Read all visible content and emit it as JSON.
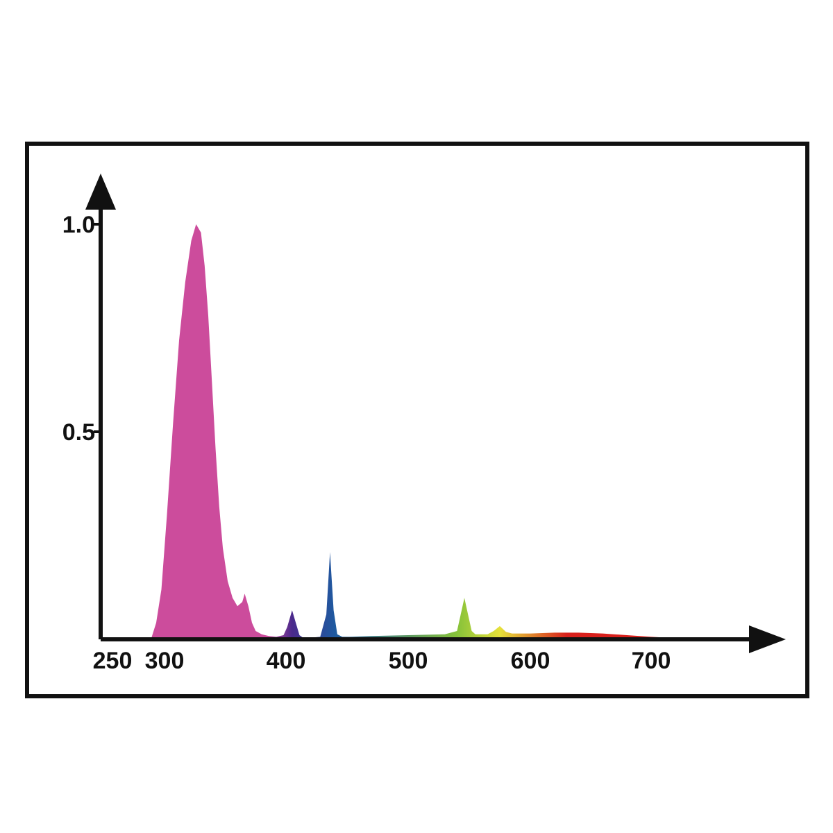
{
  "chart_data": {
    "type": "area",
    "title": "",
    "xlabel": "",
    "ylabel": "",
    "x_ticks": [
      "250",
      "300",
      "400",
      "500",
      "600",
      "700"
    ],
    "y_ticks": [
      "1.0",
      "0.5"
    ],
    "xlim": [
      250,
      790
    ],
    "ylim": [
      0,
      1.1
    ],
    "grid": false,
    "legend": "none",
    "series": [
      {
        "x": [
          287,
          292,
          297,
          302,
          307,
          312,
          317,
          322,
          326,
          330,
          333,
          336,
          339,
          342,
          345,
          348,
          352,
          356,
          360,
          364,
          366,
          369,
          372,
          375,
          380,
          386,
          392,
          398,
          401,
          405,
          408,
          411,
          414,
          420,
          428,
          433,
          436,
          439,
          442,
          446,
          452,
          470,
          500,
          530,
          540,
          543,
          546,
          549,
          552,
          555,
          565,
          570,
          575,
          580,
          585,
          600,
          620,
          640,
          660,
          680,
          700,
          720,
          750
        ],
        "y": [
          0.0,
          0.04,
          0.12,
          0.3,
          0.52,
          0.72,
          0.86,
          0.96,
          1.0,
          0.98,
          0.9,
          0.78,
          0.62,
          0.46,
          0.32,
          0.22,
          0.14,
          0.1,
          0.08,
          0.09,
          0.11,
          0.08,
          0.04,
          0.02,
          0.012,
          0.008,
          0.006,
          0.01,
          0.03,
          0.07,
          0.04,
          0.01,
          0.004,
          0.004,
          0.006,
          0.06,
          0.21,
          0.07,
          0.012,
          0.006,
          0.006,
          0.008,
          0.01,
          0.012,
          0.02,
          0.06,
          0.1,
          0.06,
          0.02,
          0.012,
          0.012,
          0.02,
          0.032,
          0.018,
          0.014,
          0.014,
          0.016,
          0.016,
          0.014,
          0.01,
          0.006,
          0.003,
          0.0
        ]
      }
    ],
    "colors": {
      "uv_peak": "#cc4c9c",
      "violet": "#4a2a8c",
      "blue": "#1e5aa0",
      "green": "#86c23a",
      "yellow": "#e6e13a",
      "red": "#d8201c",
      "axis": "#111111"
    }
  }
}
